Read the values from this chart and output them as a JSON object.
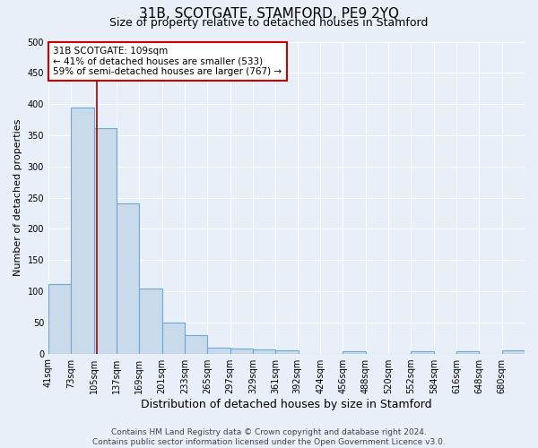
{
  "title": "31B, SCOTGATE, STAMFORD, PE9 2YQ",
  "subtitle": "Size of property relative to detached houses in Stamford",
  "xlabel": "Distribution of detached houses by size in Stamford",
  "ylabel": "Number of detached properties",
  "bin_left_edges": [
    41,
    73,
    105,
    137,
    169,
    201,
    233,
    265,
    297,
    329,
    361,
    392,
    424,
    456,
    488,
    520,
    552,
    584,
    616,
    648,
    680
  ],
  "bin_width": 32,
  "bar_heights": [
    111,
    394,
    362,
    241,
    104,
    50,
    30,
    10,
    8,
    6,
    5,
    0,
    0,
    4,
    0,
    0,
    4,
    0,
    4,
    0,
    5
  ],
  "bar_color": "#c9daea",
  "bar_edge_color": "#6aaad4",
  "background_color": "#e8eff8",
  "grid_color": "#ffffff",
  "property_value": 109,
  "vertical_line_color": "#aa0000",
  "annotation_text": "31B SCOTGATE: 109sqm\n← 41% of detached houses are smaller (533)\n59% of semi-detached houses are larger (767) →",
  "annotation_box_color": "#ffffff",
  "annotation_box_edge_color": "#cc0000",
  "ylim": [
    0,
    500
  ],
  "yticks": [
    0,
    50,
    100,
    150,
    200,
    250,
    300,
    350,
    400,
    450,
    500
  ],
  "footer_text": "Contains HM Land Registry data © Crown copyright and database right 2024.\nContains public sector information licensed under the Open Government Licence v3.0.",
  "tick_labels": [
    "41sqm",
    "73sqm",
    "105sqm",
    "137sqm",
    "169sqm",
    "201sqm",
    "233sqm",
    "265sqm",
    "297sqm",
    "329sqm",
    "361sqm",
    "392sqm",
    "424sqm",
    "456sqm",
    "488sqm",
    "520sqm",
    "552sqm",
    "584sqm",
    "616sqm",
    "648sqm",
    "680sqm"
  ],
  "title_fontsize": 11,
  "subtitle_fontsize": 9,
  "ylabel_fontsize": 8,
  "xlabel_fontsize": 9,
  "tick_fontsize": 7,
  "annotation_fontsize": 7.5,
  "footer_fontsize": 6.5
}
